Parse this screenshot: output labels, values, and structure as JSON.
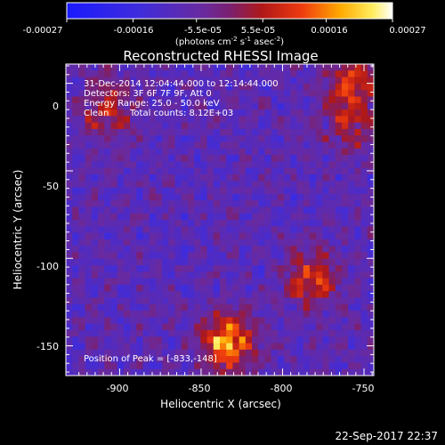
{
  "colorbar": {
    "tick_labels": [
      "-0.00027",
      "-0.00016",
      "-5.5e-05",
      "5.5e-05",
      "0.00016",
      "0.00027"
    ],
    "tick_values": [
      -0.00027,
      -0.00016,
      -5.5e-05,
      5.5e-05,
      0.00016,
      0.00027
    ],
    "range": [
      -0.00027,
      0.00027
    ],
    "units_main": "(photons cm",
    "units_sup1": "-2",
    "units_mid1": " s",
    "units_sup2": "-1",
    "units_mid2": " asec",
    "units_sup3": "-2",
    "units_end": ")"
  },
  "annotations": {
    "time_range": "31-Dec-2014 12:04:44.000 to 12:14:44.000",
    "detectors": "Detectors: 3F 6F 7F 9F, Att 0",
    "energy": "Energy Range: 25.0 - 50.0 keV",
    "method": "Clean",
    "counts": "Total counts: 8.12E+03",
    "peak": "Position of Peak = [-833,-148]"
  },
  "timestamp": "22-Sep-2017 22:37",
  "chart_data": {
    "type": "heatmap",
    "title": "Reconstructed RHESSI Image",
    "xlabel": "Heliocentric X (arcsec)",
    "ylabel": "Heliocentric Y (arcsec)",
    "xlim": [
      -933,
      -744
    ],
    "ylim": [
      -167,
      11
    ],
    "x_ticks": [
      -900,
      -850,
      -800,
      -750
    ],
    "x_tick_labels": [
      "-900",
      "-850",
      "-800",
      "-750"
    ],
    "y_ticks": [
      0,
      -50,
      -100,
      -150
    ],
    "y_tick_labels": [
      "0",
      "-50",
      "-100",
      "-150"
    ],
    "colormap": "rhessi blue-purple-red-yellow-white",
    "sources": [
      {
        "x": -833,
        "y": -148,
        "peak": 0.00027
      },
      {
        "x": -782,
        "y": -112,
        "peak": 0.00018
      },
      {
        "x": -908,
        "y": -15,
        "peak": 0.00015
      },
      {
        "x": -757,
        "y": 2,
        "peak": 0.00016
      },
      {
        "x": -758,
        "y": -25,
        "peak": 0.00012
      }
    ],
    "peak_position": [
      -833,
      -148
    ]
  }
}
